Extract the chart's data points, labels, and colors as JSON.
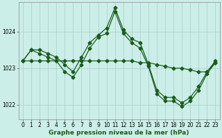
{
  "xlabel": "Graphe pression niveau de la mer (hPa)",
  "bg_color": "#cceee8",
  "grid_color": "#aacccc",
  "line_color": "#1a5c1a",
  "ylim": [
    1021.6,
    1024.8
  ],
  "yticks": [
    1022,
    1023,
    1024
  ],
  "x_ticks": [
    0,
    1,
    2,
    3,
    4,
    5,
    6,
    7,
    8,
    9,
    10,
    11,
    12,
    13,
    14,
    15,
    16,
    17,
    18,
    19,
    20,
    21,
    22,
    23
  ],
  "series": [
    [
      1023.2,
      1023.5,
      1023.5,
      1023.4,
      1023.3,
      1023.1,
      1022.9,
      1023.3,
      1023.7,
      1023.9,
      1024.1,
      1024.65,
      1024.05,
      1023.8,
      1023.7,
      1023.1,
      1022.4,
      1022.2,
      1022.2,
      1022.05,
      1022.2,
      1022.5,
      1022.9,
      1023.2
    ],
    [
      1023.2,
      1023.5,
      1023.4,
      1023.3,
      1023.2,
      1022.9,
      1022.75,
      1023.1,
      1023.55,
      1023.85,
      1023.95,
      1024.55,
      1023.95,
      1023.7,
      1023.55,
      1023.05,
      1022.3,
      1022.1,
      1022.1,
      1021.95,
      1022.1,
      1022.4,
      1022.85,
      1023.15
    ],
    [
      1023.2,
      1023.2,
      1023.2,
      1023.2,
      1023.2,
      1023.2,
      1023.2,
      1023.2,
      1023.2,
      1023.2,
      1023.2,
      1023.2,
      1023.2,
      1023.2,
      1023.15,
      1023.15,
      1023.1,
      1023.05,
      1023.0,
      1023.0,
      1022.95,
      1022.9,
      1022.9,
      1023.15
    ]
  ],
  "marker": "D",
  "markersize": 2.5,
  "linewidth": 0.9,
  "tick_fontsize": 5.5,
  "label_fontsize": 6.5
}
